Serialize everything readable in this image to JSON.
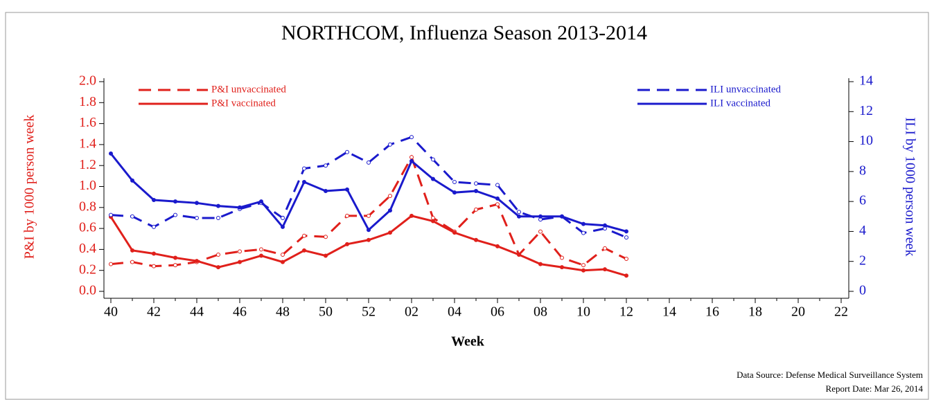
{
  "chart_data": {
    "type": "line",
    "title": "NORTHCOM, Influenza Season 2013-2014",
    "x_label": "Week",
    "y_label": "P&I by 1000 person week",
    "y2_label": "ILI by 1000 person week",
    "source": "Data Source: Defense Medical Surveillance System",
    "report_date": "Report Date: Mar 26, 2014",
    "categories": [
      "40",
      null,
      "42",
      null,
      "44",
      null,
      "46",
      null,
      "48",
      null,
      "50",
      null,
      "52",
      null,
      "02",
      null,
      "04",
      null,
      "06",
      null,
      "08",
      null,
      "10",
      null,
      "12",
      null,
      "14",
      null,
      "16",
      null,
      "18",
      null,
      "20",
      null,
      "22"
    ],
    "ylim": [
      0,
      2.0
    ],
    "yticks": [
      {
        "value": 0,
        "label": "0.0"
      },
      0.2,
      0.4,
      0.6,
      0.8,
      {
        "value": 1,
        "label": "1.0"
      },
      1.2,
      1.4,
      1.6,
      1.8,
      {
        "value": 2,
        "label": "2.0"
      }
    ],
    "y2lim": [
      0,
      14
    ],
    "y2ticks": [
      0,
      2,
      4,
      6,
      8,
      10,
      12,
      14
    ],
    "series": [
      {
        "name": "P&I unvaccinated",
        "color": "#e0201b",
        "line_style": "dashed",
        "axis": "y",
        "values": [
          0.26,
          0.28,
          0.24,
          0.25,
          0.28,
          0.35,
          0.38,
          0.4,
          0.35,
          0.53,
          0.52,
          0.72,
          0.72,
          0.91,
          1.28,
          0.7,
          0.57,
          0.78,
          0.83,
          0.35,
          0.57,
          0.32,
          0.25,
          0.41,
          0.31,
          null,
          null,
          null,
          null,
          null,
          null,
          null,
          null,
          null,
          null
        ]
      },
      {
        "name": "P&I vaccinated",
        "color": "#e0201b",
        "line_style": "solid",
        "axis": "y",
        "values": [
          0.71,
          0.39,
          0.36,
          0.32,
          0.29,
          0.23,
          0.28,
          0.34,
          0.28,
          0.39,
          0.34,
          0.45,
          0.49,
          0.56,
          0.72,
          0.67,
          0.56,
          0.49,
          0.43,
          0.35,
          0.26,
          0.23,
          0.2,
          0.21,
          0.15,
          null,
          null,
          null,
          null,
          null,
          null,
          null,
          null,
          null,
          null
        ]
      },
      {
        "name": "ILI unvaccinated",
        "color": "#1a1acc",
        "line_style": "dashed",
        "axis": "y2",
        "values": [
          5.1,
          5.0,
          4.3,
          5.1,
          4.9,
          4.9,
          5.5,
          5.9,
          4.9,
          8.2,
          8.4,
          9.3,
          8.6,
          9.8,
          10.3,
          8.8,
          7.3,
          7.2,
          7.1,
          5.3,
          4.8,
          5.0,
          3.9,
          4.2,
          3.6,
          null,
          null,
          null,
          null,
          null,
          null,
          null,
          null,
          null,
          null
        ]
      },
      {
        "name": "ILI vaccinated",
        "color": "#1a1acc",
        "line_style": "solid",
        "axis": "y2",
        "values": [
          9.2,
          7.4,
          6.1,
          6.0,
          5.9,
          5.7,
          5.6,
          6.0,
          4.3,
          7.3,
          6.7,
          6.8,
          4.1,
          5.4,
          8.7,
          7.5,
          6.6,
          6.7,
          6.2,
          5.0,
          5.0,
          5.0,
          4.5,
          4.4,
          4.0,
          null,
          null,
          null,
          null,
          null,
          null,
          null,
          null,
          null,
          null
        ]
      }
    ]
  }
}
